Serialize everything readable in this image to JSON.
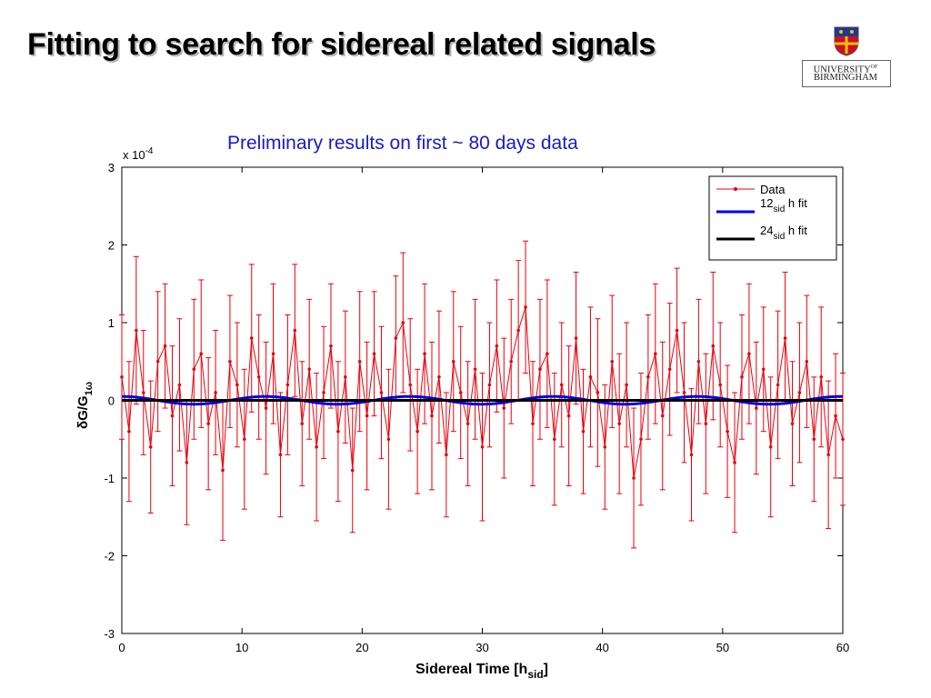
{
  "slide": {
    "title": "Fitting to search for sidereal related signals",
    "logo_line1": "UNIVERSITY",
    "logo_line1_sup": "OF",
    "logo_line2": "BIRMINGHAM"
  },
  "chart_data": {
    "type": "line",
    "title": "Preliminary results on first ~ 80 days data",
    "xlabel": "Sidereal Time [h",
    "xlabel_sub": "sid",
    "xlabel_end": "]",
    "ylabel": "δG/G",
    "ylabel_sub": "1ω",
    "y_exponent_label": "x 10",
    "y_exponent_power": "-4",
    "xlim": [
      0,
      60
    ],
    "ylim": [
      -3,
      3
    ],
    "x_ticks": [
      "0",
      "10",
      "20",
      "30",
      "40",
      "50",
      "60"
    ],
    "y_ticks": [
      "-3",
      "-2",
      "-1",
      "0",
      "1",
      "2",
      "3"
    ],
    "legend_position": "top-right",
    "grid": false,
    "data_series": {
      "name": "Data",
      "color": "#e8000b",
      "x": [
        0.0,
        0.6,
        1.2,
        1.8,
        2.4,
        3.0,
        3.6,
        4.2,
        4.8,
        5.4,
        6.0,
        6.6,
        7.2,
        7.8,
        8.4,
        9.0,
        9.6,
        10.2,
        10.8,
        11.4,
        12.0,
        12.6,
        13.2,
        13.8,
        14.4,
        15.0,
        15.6,
        16.2,
        16.8,
        17.4,
        18.0,
        18.6,
        19.2,
        19.8,
        20.4,
        21.0,
        21.6,
        22.2,
        22.8,
        23.4,
        24.0,
        24.6,
        25.2,
        25.8,
        26.4,
        27.0,
        27.6,
        28.2,
        28.8,
        29.4,
        30.0,
        30.6,
        31.2,
        31.8,
        32.4,
        33.0,
        33.6,
        34.2,
        34.8,
        35.4,
        36.0,
        36.6,
        37.2,
        37.8,
        38.4,
        39.0,
        39.6,
        40.2,
        40.8,
        41.4,
        42.0,
        42.6,
        43.2,
        43.8,
        44.4,
        45.0,
        45.6,
        46.2,
        46.8,
        47.4,
        48.0,
        48.6,
        49.2,
        49.8,
        50.4,
        51.0,
        51.6,
        52.2,
        52.8,
        53.4,
        54.0,
        54.6,
        55.2,
        55.8,
        56.4,
        57.0,
        57.6,
        58.2,
        58.8,
        59.4,
        60.0
      ],
      "y": [
        0.3,
        -0.4,
        0.9,
        0.1,
        -0.6,
        0.5,
        0.7,
        -0.2,
        0.2,
        -0.8,
        0.4,
        0.6,
        -0.3,
        0.1,
        -0.9,
        0.5,
        0.2,
        -0.5,
        0.8,
        0.3,
        -0.1,
        0.6,
        -0.7,
        0.2,
        0.9,
        -0.3,
        0.4,
        -0.6,
        0.1,
        0.7,
        -0.4,
        0.3,
        -0.9,
        0.5,
        -0.2,
        0.6,
        0.1,
        -0.5,
        0.8,
        1.0,
        0.2,
        -0.4,
        0.6,
        -0.2,
        0.3,
        -0.7,
        0.5,
        0.1,
        -0.3,
        0.4,
        -0.6,
        0.2,
        0.7,
        -0.1,
        0.5,
        0.9,
        1.2,
        -0.3,
        0.4,
        0.6,
        -0.5,
        0.2,
        -0.2,
        0.8,
        -0.4,
        0.3,
        0.1,
        -0.6,
        0.5,
        -0.3,
        0.2,
        -1.0,
        -0.5,
        0.3,
        0.6,
        -0.2,
        0.4,
        0.9,
        0.1,
        -0.7,
        0.5,
        -0.3,
        0.7,
        0.2,
        -0.4,
        -0.8,
        0.3,
        0.6,
        -0.1,
        0.4,
        -0.6,
        0.2,
        0.8,
        -0.3,
        0.1,
        0.5,
        -0.5,
        0.3,
        -0.7,
        -0.2,
        -0.5
      ],
      "err": [
        0.8,
        0.9,
        0.95,
        0.8,
        0.85,
        0.9,
        0.8,
        0.9,
        0.85,
        0.8,
        0.9,
        0.95,
        0.85,
        0.8,
        0.9,
        0.85,
        0.8,
        0.9,
        0.95,
        0.8,
        0.85,
        0.9,
        0.8,
        0.9,
        0.85,
        0.8,
        0.9,
        0.95,
        0.85,
        0.8,
        0.9,
        0.85,
        0.8,
        0.9,
        0.95,
        0.8,
        0.85,
        0.9,
        0.8,
        0.9,
        0.85,
        0.8,
        0.9,
        0.95,
        0.85,
        0.8,
        0.9,
        0.85,
        0.8,
        0.9,
        0.95,
        0.8,
        0.85,
        0.9,
        0.8,
        0.9,
        0.85,
        0.8,
        0.9,
        0.95,
        0.85,
        0.8,
        0.9,
        0.85,
        0.8,
        0.9,
        0.95,
        0.8,
        0.85,
        0.9,
        0.8,
        0.9,
        0.85,
        0.8,
        0.9,
        0.95,
        0.85,
        0.8,
        0.9,
        0.85,
        0.8,
        0.9,
        0.95,
        0.8,
        0.85,
        0.9,
        0.8,
        0.9,
        0.85,
        0.8,
        0.9,
        0.95,
        0.85,
        0.8,
        0.9,
        0.85,
        0.8,
        0.9,
        0.95,
        0.8,
        0.85
      ]
    },
    "fit_12": {
      "name": "12",
      "name_sub": "sid",
      "name_end": " h fit",
      "color": "#0000e0",
      "amplitude": 0.05,
      "period": 11.967,
      "phase_deg": 90
    },
    "fit_24": {
      "name": "24",
      "name_sub": "sid",
      "name_end": " h fit",
      "color": "#000000",
      "amplitude": 0.0,
      "period": 23.934,
      "phase_deg": 0
    }
  }
}
